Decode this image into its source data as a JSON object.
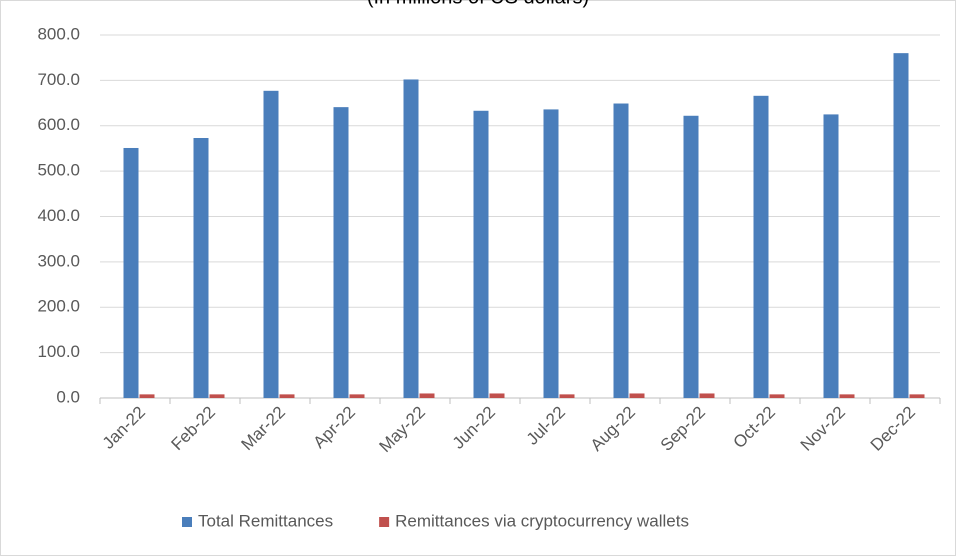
{
  "chart_data": {
    "type": "bar",
    "subtitle": "(In millions of US dollars)",
    "categories": [
      "Jan-22",
      "Feb-22",
      "Mar-22",
      "Apr-22",
      "May-22",
      "Jun-22",
      "Jul-22",
      "Aug-22",
      "Sep-22",
      "Oct-22",
      "Nov-22",
      "Dec-22"
    ],
    "series": [
      {
        "name": "Total Remittances",
        "color": "#4a7ebb",
        "values": [
          551,
          573,
          677,
          641,
          702,
          633,
          636,
          649,
          622,
          666,
          625,
          760
        ]
      },
      {
        "name": "Remittances via cryptocurrency wallets",
        "color": "#c0504d",
        "values": [
          8,
          8,
          8,
          8,
          10,
          10,
          8,
          10,
          10,
          8,
          8,
          8
        ]
      }
    ],
    "ylim": [
      0,
      800
    ],
    "yticks": [
      {
        "value": 0,
        "label": "0.0"
      },
      {
        "value": 100,
        "label": "100.0"
      },
      {
        "value": 200,
        "label": "200.0"
      },
      {
        "value": 300,
        "label": "300.0"
      },
      {
        "value": 400,
        "label": "400.0"
      },
      {
        "value": 500,
        "label": "500.0"
      },
      {
        "value": 600,
        "label": "600.0"
      },
      {
        "value": 700,
        "label": "700.0"
      },
      {
        "value": 800,
        "label": "800.0"
      }
    ],
    "grid": true,
    "legend": "bottom"
  }
}
